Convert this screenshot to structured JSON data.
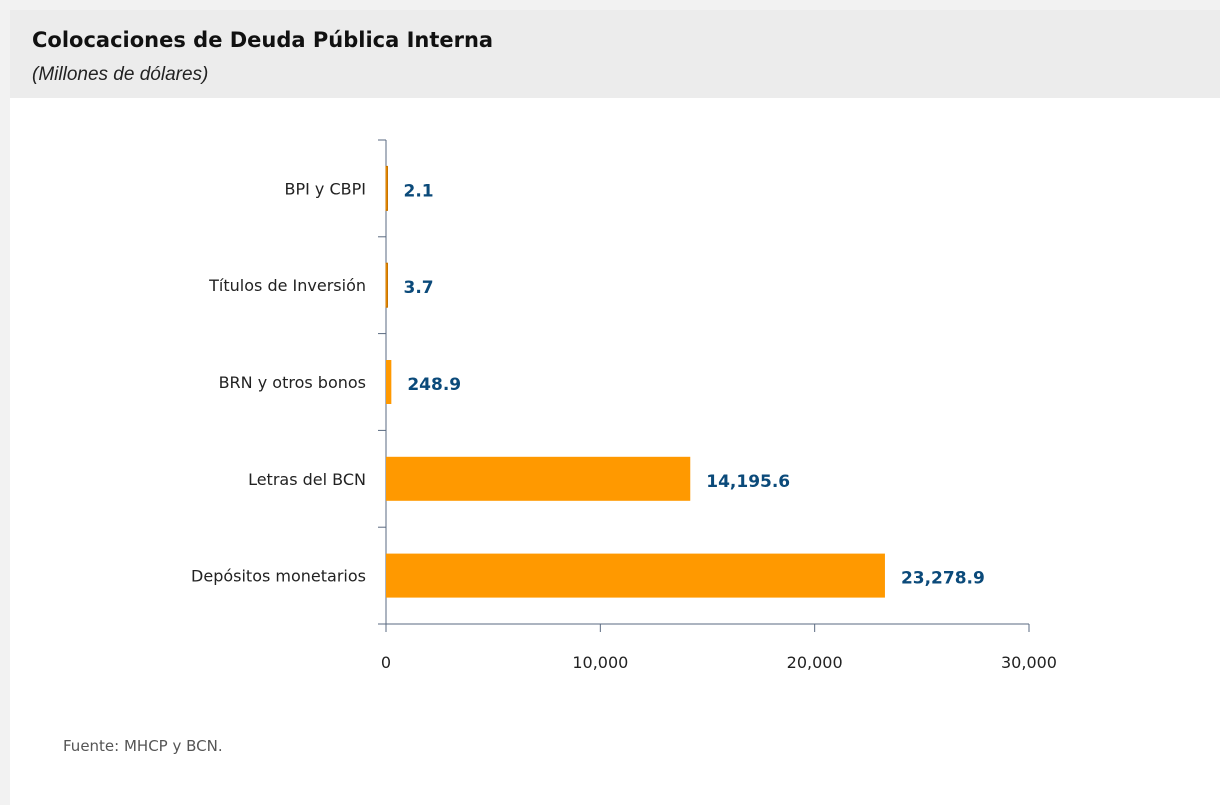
{
  "header": {
    "title": "Colocaciones de Deuda Pública Interna",
    "subtitle": "(Millones de dólares)"
  },
  "footer": {
    "source": "Fuente: MHCP y BCN."
  },
  "colors": {
    "bar": "#ff9900",
    "bar_outline": "#c77400",
    "data_label": "#0b4a7a",
    "axis": "#5a6a80"
  },
  "chart_data": {
    "type": "bar",
    "orientation": "horizontal",
    "title": "Colocaciones de Deuda Pública Interna",
    "subtitle": "(Millones de dólares)",
    "xlabel": "",
    "ylabel": "",
    "categories": [
      "BPI y CBPI",
      "Títulos de Inversión",
      "BRN y otros bonos",
      "Letras del BCN",
      "Depósitos monetarios"
    ],
    "values": [
      2.1,
      3.7,
      248.9,
      14195.6,
      23278.9
    ],
    "data_labels": [
      "2.1",
      "3.7",
      "248.9",
      "14,195.6",
      "23,278.9"
    ],
    "xlim": [
      0,
      30000
    ],
    "x_ticks": [
      0,
      10000,
      20000,
      30000
    ],
    "x_tick_labels": [
      "0",
      "10,000",
      "20,000",
      "30,000"
    ],
    "grid": false,
    "legend": "none"
  }
}
